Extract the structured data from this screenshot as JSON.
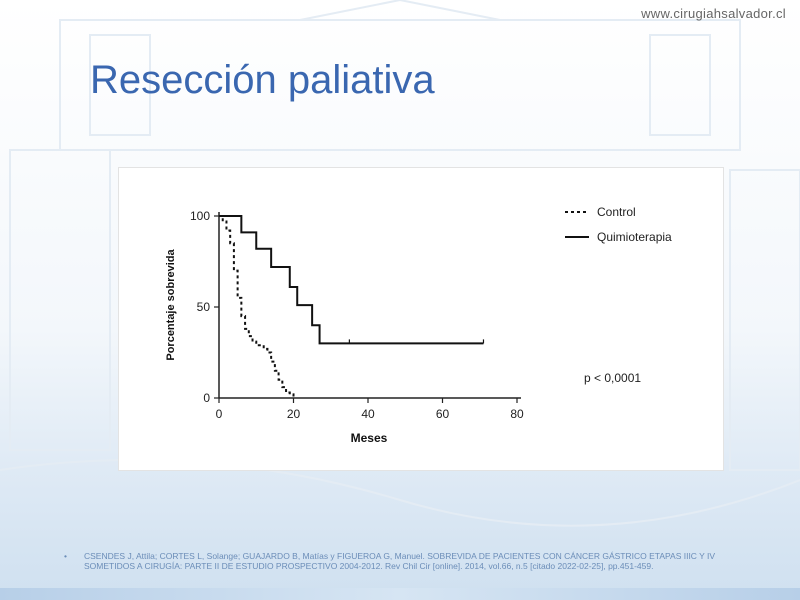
{
  "slide": {
    "site_url": "www.cirugiahsalvador.cl",
    "title": "Resección paliativa",
    "citation_bullet": "•",
    "citation": "CSENDES J, Attila; CORTES L, Solange; GUAJARDO B, Matías  y  FIGUEROA G, Manuel. SOBREVIDA DE PACIENTES CON CÁNCER GÁSTRICO ETAPAS IIIC Y IV SOMETIDOS A CIRUGÍA: PARTE II DE ESTUDIO PROSPECTIVO 2004-2012. Rev Chil Cir [online]. 2014, vol.66, n.5 [citado  2022-02-25], pp.451-459."
  },
  "colors": {
    "title": "#3a67b0",
    "citation": "#6b8db8",
    "line": "#111111"
  },
  "chart_data": {
    "type": "line",
    "step": true,
    "xlabel": "Meses",
    "ylabel": "Porcentaje sobrevida",
    "xlim": [
      0,
      80
    ],
    "ylim": [
      0,
      100
    ],
    "xticks": [
      0,
      20,
      40,
      60,
      80
    ],
    "yticks": [
      0,
      50,
      100
    ],
    "annotation": "p < 0,0001",
    "legend_position": "top-right",
    "grid": false,
    "series": [
      {
        "name": "Control",
        "style": "dashed",
        "points": [
          [
            0,
            100
          ],
          [
            1,
            97
          ],
          [
            2,
            92
          ],
          [
            3,
            85
          ],
          [
            4,
            70
          ],
          [
            5,
            55
          ],
          [
            6,
            45
          ],
          [
            7,
            38
          ],
          [
            8,
            34
          ],
          [
            9,
            31
          ],
          [
            10,
            29
          ],
          [
            12,
            27
          ],
          [
            13,
            25
          ],
          [
            14,
            20
          ],
          [
            15,
            15
          ],
          [
            16,
            10
          ],
          [
            17,
            6
          ],
          [
            18,
            3
          ],
          [
            19,
            2
          ],
          [
            20,
            0
          ]
        ]
      },
      {
        "name": "Quimioterapia",
        "style": "solid",
        "points": [
          [
            0,
            100
          ],
          [
            6,
            100
          ],
          [
            6,
            91
          ],
          [
            10,
            91
          ],
          [
            10,
            82
          ],
          [
            14,
            82
          ],
          [
            14,
            72
          ],
          [
            19,
            72
          ],
          [
            19,
            61
          ],
          [
            21,
            61
          ],
          [
            21,
            51
          ],
          [
            25,
            51
          ],
          [
            25,
            40
          ],
          [
            27,
            40
          ],
          [
            27,
            30
          ],
          [
            71,
            30
          ]
        ]
      }
    ]
  }
}
